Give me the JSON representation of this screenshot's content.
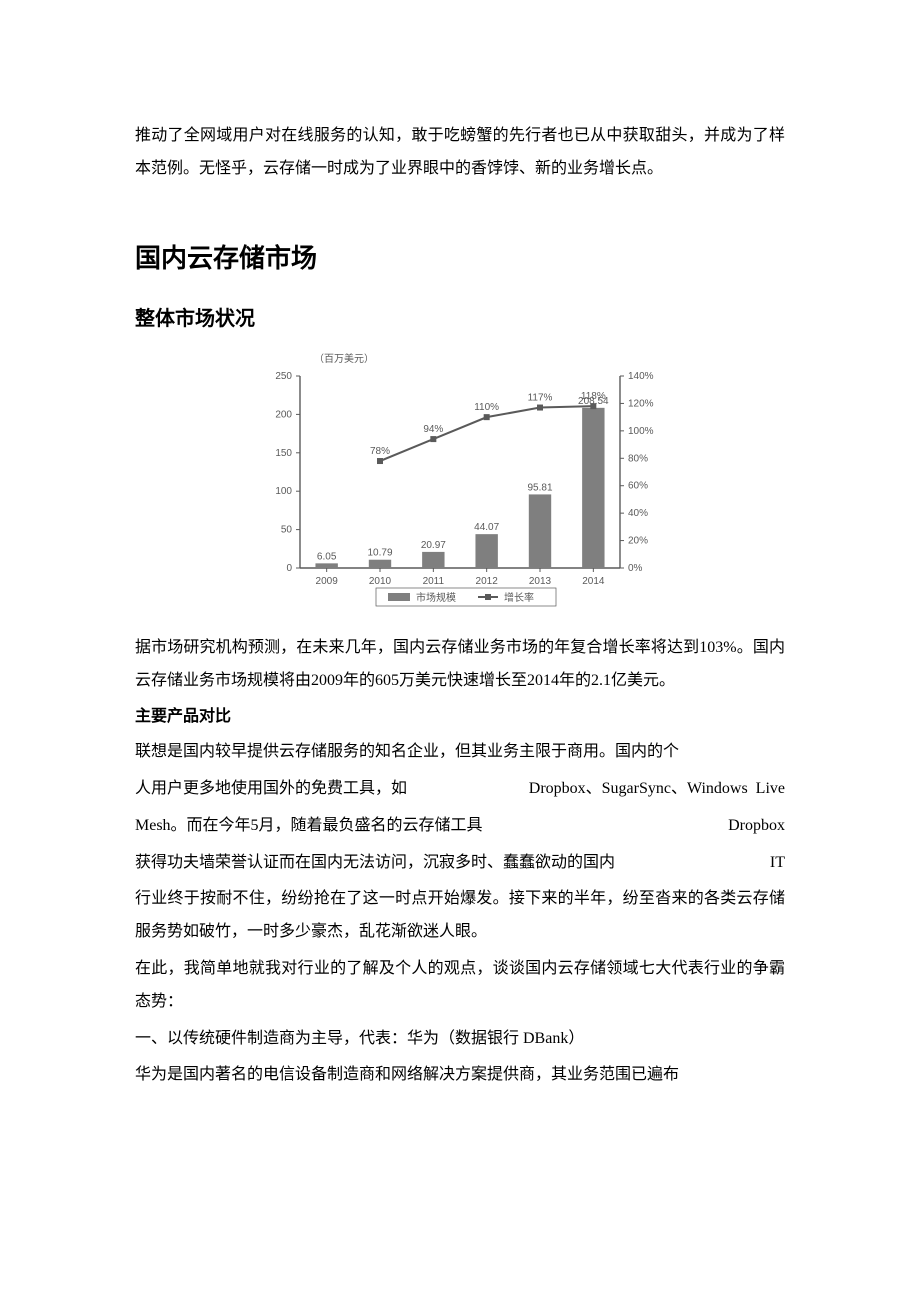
{
  "intro_para": "推动了全网域用户对在线服务的认知，敢于吃螃蟹的先行者也已从中获取甜头，并成为了样本范例。无怪乎，云存储一时成为了业界眼中的香饽饽、新的业务增长点。",
  "h1": "国内云存储市场",
  "h2": "整体市场状况",
  "chart": {
    "type": "bar+line",
    "unit_label": "（百万美元）",
    "categories": [
      "2009",
      "2010",
      "2011",
      "2012",
      "2013",
      "2014"
    ],
    "bar_values": [
      6.05,
      10.79,
      20.97,
      44.07,
      95.81,
      208.54
    ],
    "bar_labels": [
      "6.05",
      "10.79",
      "20.97",
      "44.07",
      "95.81",
      "208.54"
    ],
    "line_values_pct": [
      null,
      78,
      94,
      110,
      117,
      118
    ],
    "line_labels": [
      "",
      "78%",
      "94%",
      "110%",
      "117%",
      "118%"
    ],
    "y_left": {
      "min": 0,
      "max": 250,
      "step": 50
    },
    "y_right": {
      "min": 0,
      "max": 140,
      "step": 20,
      "suffix": "%"
    },
    "legend": {
      "bar": "市场规模",
      "line": "增长率"
    },
    "colors": {
      "bar_fill": "#7f7f7f",
      "line": "#5a5a5a",
      "marker": "#5a5a5a",
      "axis": "#5a5a5a",
      "label": "#5a5a5a",
      "bg": "#ffffff"
    },
    "label_fontsize": 10,
    "bar_width": 0.42
  },
  "body_after_chart": "据市场研究机构预测，在未来几年，国内云存储业务市场的年复合增长率将达到103%。国内云存储业务市场规模将由2009年的605万美元快速增长至2014年的2.1亿美元。",
  "section_label": "主要产品对比",
  "p3_a": "联想是国内较早提供云存储服务的知名企业，但其业务主限于商用。国内的个",
  "p3_b_left": "人用户更多地使用国外的免费工具，如",
  "p3_b_right": "Dropbox、SugarSync、Windows  Live",
  "p3_c_left": "Mesh。而在今年5月，随着最负盛名的云存储工具",
  "p3_c_right": "Dropbox",
  "p3_d_left": "获得功夫墙荣誉认证而在国内无法访问，沉寂多时、蠢蠢欲动的国内",
  "p3_d_right": "IT",
  "p3_e": "行业终于按耐不住，纷纷抢在了这一时点开始爆发。接下来的半年，纷至沓来的各类云存储服务势如破竹，一时多少豪杰，乱花渐欲迷人眼。",
  "p4": "在此，我简单地就我对行业的了解及个人的观点，谈谈国内云存储领域七大代表行业的争霸态势：",
  "item1_title": "一、以传统硬件制造商为主导，代表：华为（数据银行 DBank）",
  "item1_body": "华为是国内著名的电信设备制造商和网络解决方案提供商，其业务范围已遍布"
}
